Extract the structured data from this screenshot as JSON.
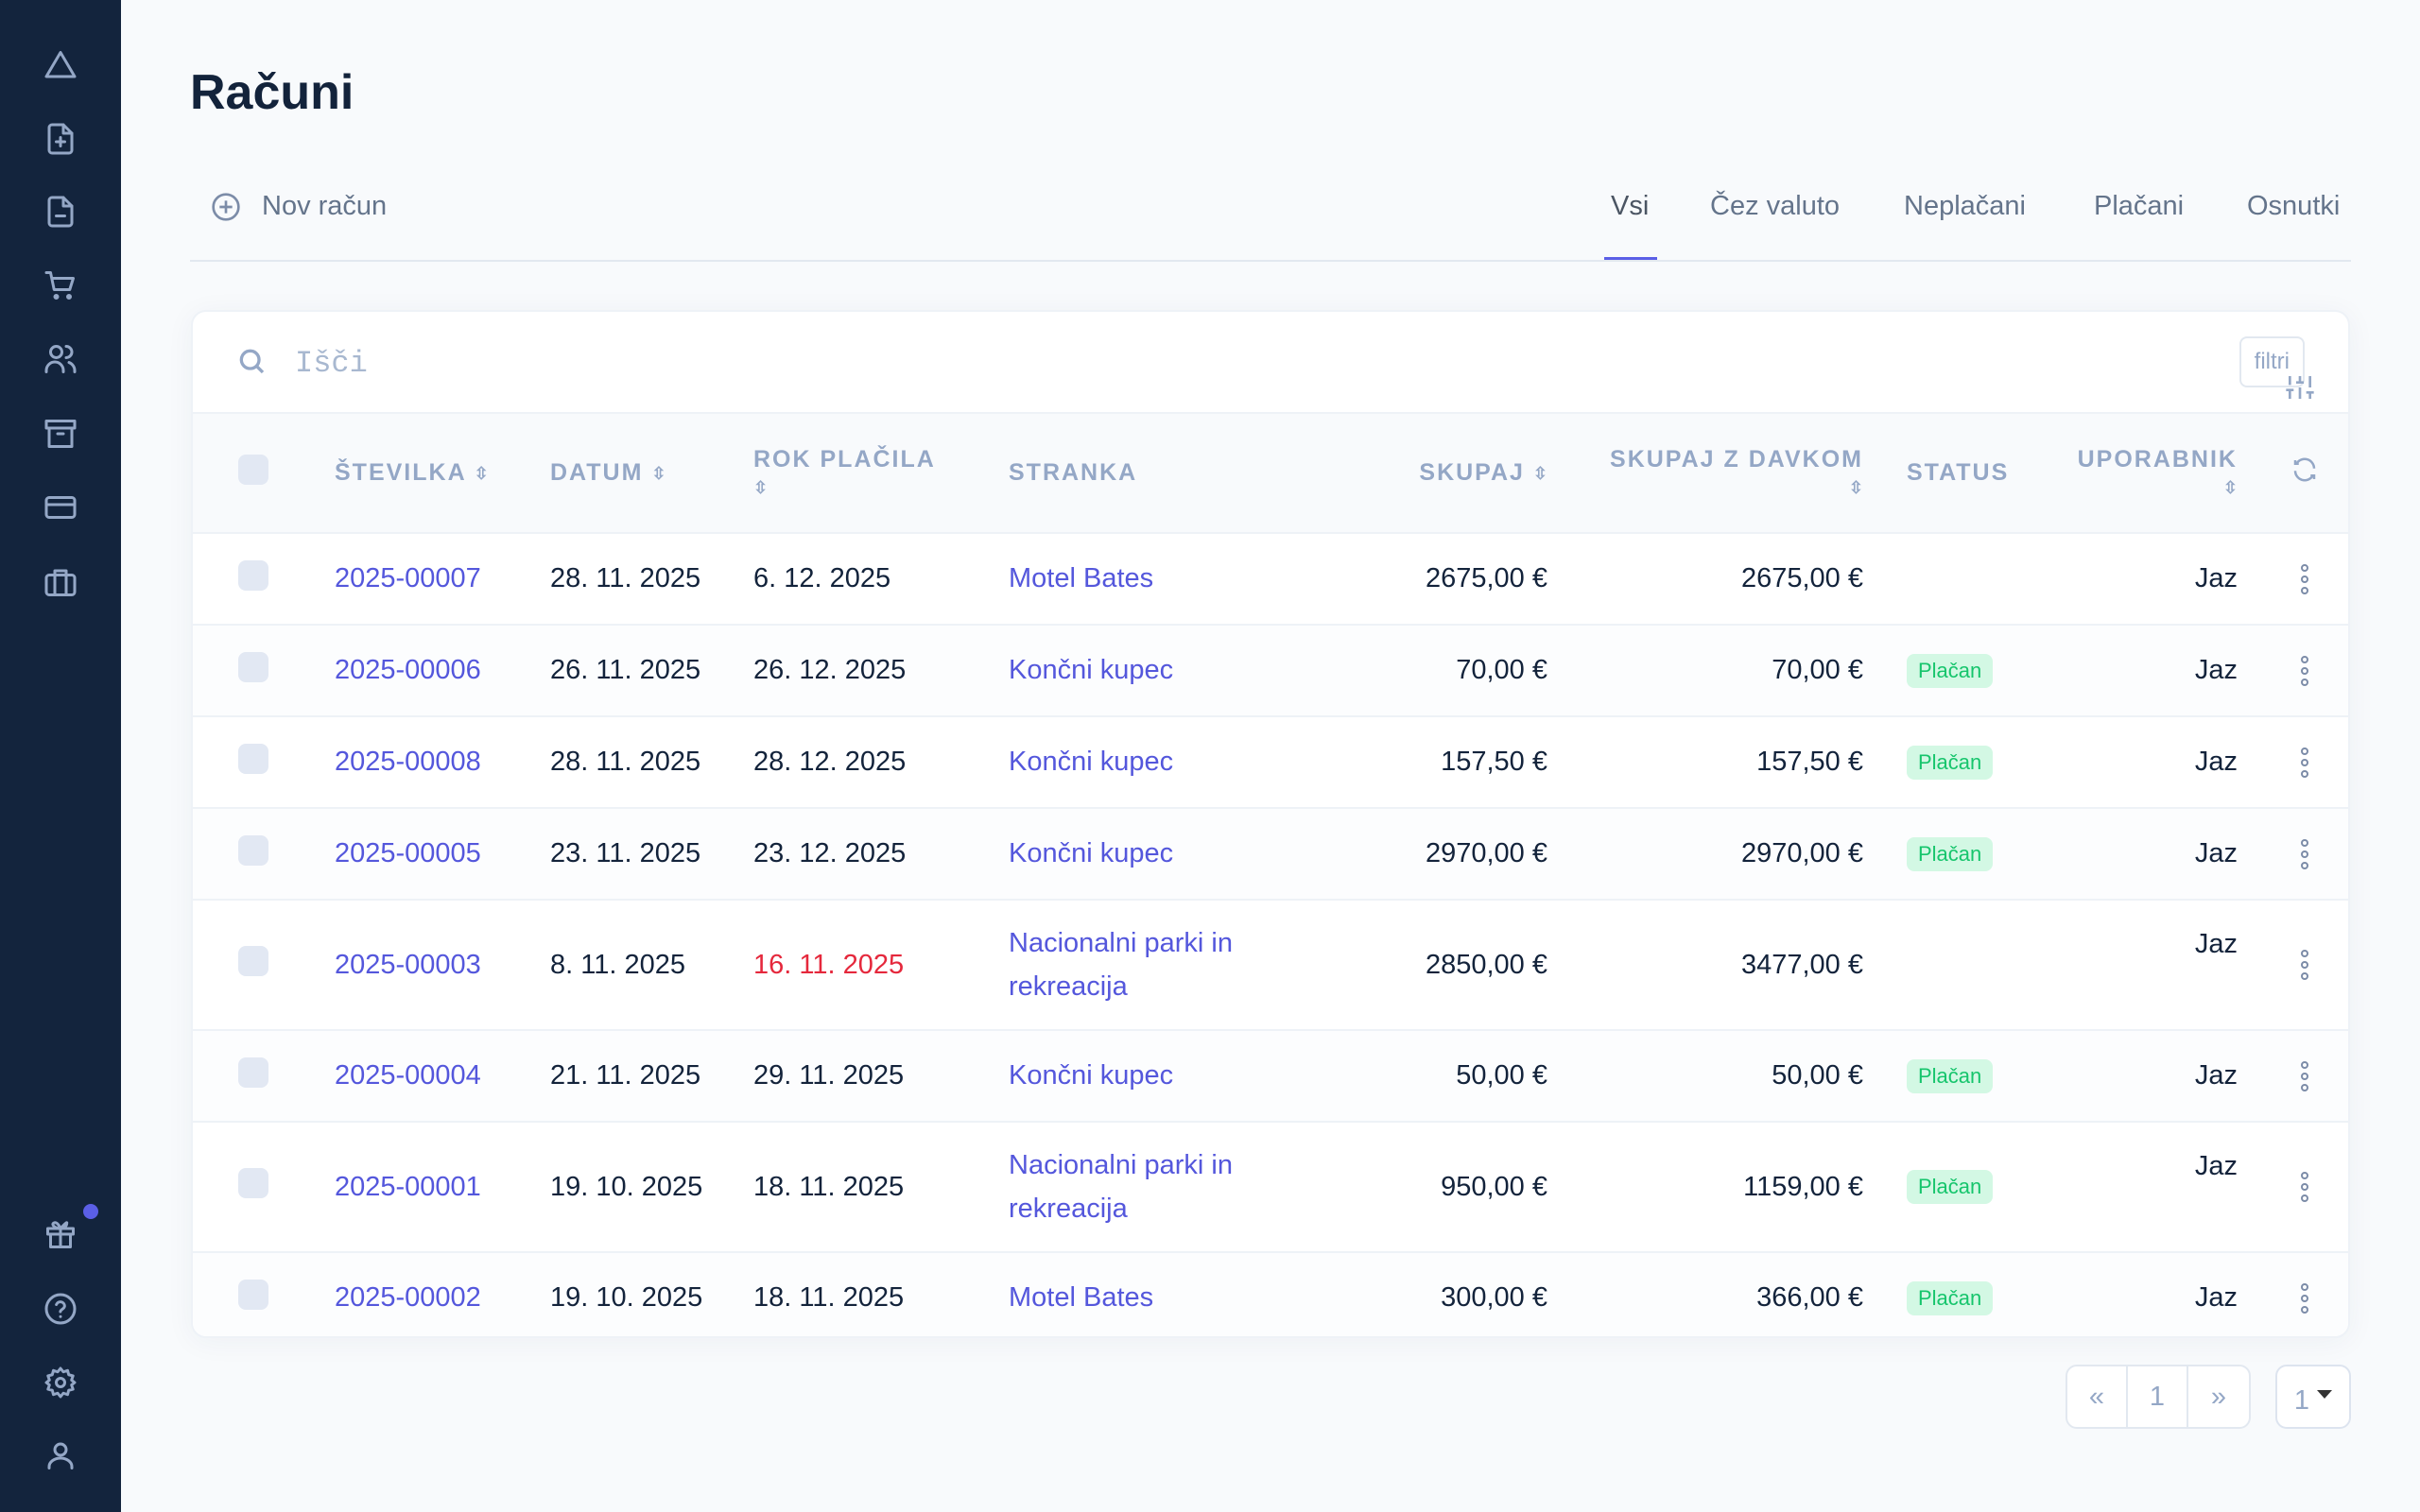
{
  "sidebar": {
    "top_icons": [
      "triangle-icon",
      "file-plus-icon",
      "file-minus-icon",
      "cart-icon",
      "users-icon",
      "archive-icon",
      "credit-card-icon",
      "briefcase-icon"
    ],
    "bottom_icons": [
      "gift-icon",
      "help-icon",
      "settings-icon",
      "user-icon"
    ],
    "notification_color": "#5b5fe6"
  },
  "page_title": "Računi",
  "new_invoice": "Nov račun",
  "tabs": [
    {
      "label": "Vsi",
      "active": true
    },
    {
      "label": "Čez valuto"
    },
    {
      "label": "Neplačani"
    },
    {
      "label": "Plačani"
    },
    {
      "label": "Osnutki"
    }
  ],
  "search": {
    "placeholder": "Išči",
    "value": ""
  },
  "filter_label": "filtri",
  "columns": {
    "number": "ŠTEVILKA",
    "date": "DATUM",
    "due": "ROK PLAČILA",
    "client": "STRANKA",
    "total": "SKUPAJ",
    "total_tax": "SKUPAJ Z DAVKOM",
    "status": "STATUS",
    "user": "UPORABNIK"
  },
  "rows": [
    {
      "number": "2025-00007",
      "date": "28. 11. 2025",
      "due": "6. 12. 2025",
      "client": "Motel Bates",
      "total": "2675,00 €",
      "total_tax": "2675,00 €",
      "status": "",
      "user": "Jaz"
    },
    {
      "number": "2025-00006",
      "date": "26. 11. 2025",
      "due": "26. 12. 2025",
      "client": "Končni kupec",
      "total": "70,00 €",
      "total_tax": "70,00 €",
      "status": "Plačan",
      "user": "Jaz"
    },
    {
      "number": "2025-00008",
      "date": "28. 11. 2025",
      "due": "28. 12. 2025",
      "client": "Končni kupec",
      "total": "157,50 €",
      "total_tax": "157,50 €",
      "status": "Plačan",
      "user": "Jaz"
    },
    {
      "number": "2025-00005",
      "date": "23. 11. 2025",
      "due": "23. 12. 2025",
      "client": "Končni kupec",
      "total": "2970,00 €",
      "total_tax": "2970,00 €",
      "status": "Plačan",
      "user": "Jaz"
    },
    {
      "number": "2025-00003",
      "date": "8. 11. 2025",
      "due": "16. 11. 2025",
      "overdue": true,
      "client": "Nacionalni parki in rekreacija",
      "total": "2850,00 €",
      "total_tax": "3477,00 €",
      "status": "",
      "user": "Jaz"
    },
    {
      "number": "2025-00004",
      "date": "21. 11. 2025",
      "due": "29. 11. 2025",
      "client": "Končni kupec",
      "total": "50,00 €",
      "total_tax": "50,00 €",
      "status": "Plačan",
      "user": "Jaz"
    },
    {
      "number": "2025-00001",
      "date": "19. 10. 2025",
      "due": "18. 11. 2025",
      "client": "Nacionalni parki in rekreacija",
      "total": "950,00 €",
      "total_tax": "1159,00 €",
      "status": "Plačan",
      "user": "Jaz"
    },
    {
      "number": "2025-00002",
      "date": "19. 10. 2025",
      "due": "18. 11. 2025",
      "client": "Motel Bates",
      "total": "300,00 €",
      "total_tax": "366,00 €",
      "status": "Plačan",
      "user": "Jaz"
    }
  ],
  "pagination": {
    "prev": "«",
    "current": "1",
    "next": "»",
    "page_select": "1"
  },
  "colors": {
    "sidebar": "#13243d",
    "link": "#5457dc",
    "overdue": "#e5283c",
    "paid_badge_bg": "#d3f8e4",
    "paid_badge_text": "#16c56c"
  }
}
